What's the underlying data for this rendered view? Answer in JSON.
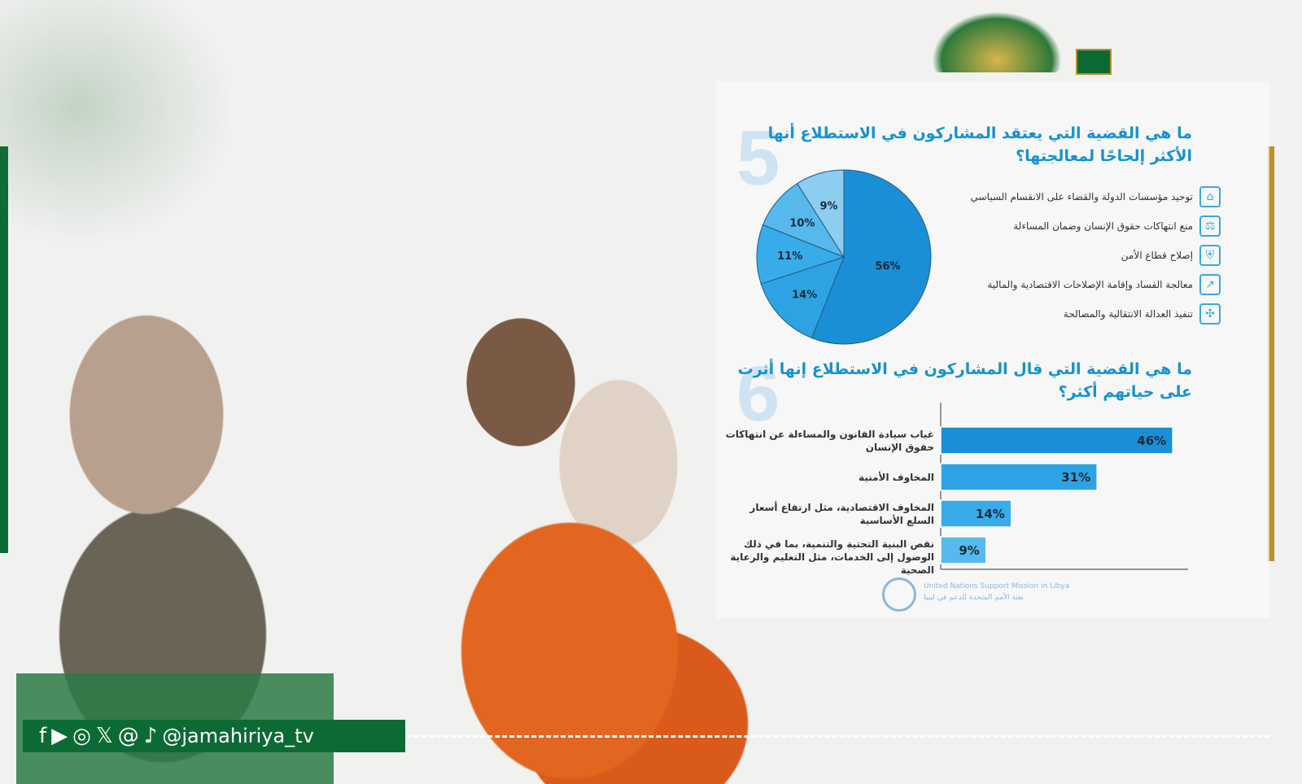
{
  "q5": {
    "number": "5",
    "title": "ما هي القضية التي يعتقد المشاركون في الاستطلاع أنها الأكثر إلحاحًا لمعالجتها؟",
    "legend": [
      {
        "label": "توحيد مؤسسات الدولة والقضاء على الانقسام السياسي",
        "icon": "institution-icon"
      },
      {
        "label": "منع انتهاكات حقوق الإنسان وضمان المساءلة",
        "icon": "scales-icon"
      },
      {
        "label": "إصلاح قطاع الأمن",
        "icon": "shield-icon"
      },
      {
        "label": "معالجة الفساد وإقامة الإصلاحات الاقتصادية والمالية",
        "icon": "growth-coins-icon"
      },
      {
        "label": "تنفيذ العدالة الانتقالية والمصالحة",
        "icon": "handshake-icon"
      }
    ]
  },
  "q6": {
    "number": "6",
    "title": "ما هي القضية التي قال المشاركون في الاستطلاع إنها أثرت على حياتهم أكثر؟"
  },
  "chart_data": [
    {
      "type": "pie",
      "categories": [
        "توحيد مؤسسات الدولة والقضاء على الانقسام السياسي",
        "منع انتهاكات حقوق الإنسان وضمان المساءلة",
        "إصلاح قطاع الأمن",
        "معالجة الفساد وإقامة الإصلاحات الاقتصادية والمالية",
        "تنفيذ العدالة الانتقالية والمصالحة"
      ],
      "values": [
        56,
        14,
        11,
        10,
        9
      ],
      "labels": [
        "56%",
        "14%",
        "11%",
        "10%",
        "9%"
      ],
      "colors": [
        "#1a8fd6",
        "#2ea3e3",
        "#38ace8",
        "#57b9eb",
        "#8ccdf0"
      ]
    },
    {
      "type": "bar",
      "orientation": "horizontal",
      "categories": [
        "غياب سيادة القانون والمساءلة عن انتهاكات حقوق الإنسان",
        "المخاوف الأمنية",
        "المخاوف الاقتصادية، مثل ارتفاع أسعار السلع الأساسية",
        "نقص البنية التحتية والتنمية، بما في ذلك الوصول إلى الخدمات، مثل التعليم والرعاية الصحية"
      ],
      "values": [
        46,
        31,
        14,
        9
      ],
      "labels": [
        "46%",
        "31%",
        "14%",
        "9%"
      ],
      "colors": [
        "#1a8fd6",
        "#2ea3e3",
        "#38ace8",
        "#57b9eb"
      ]
    }
  ],
  "footer": {
    "org_en": "United Nations Support Mission in Libya",
    "org_ar": "بعثة الأمم المتحدة للدعم في ليبيا",
    "social_handle": "@jamahiriya_tv",
    "social_icons": [
      "facebook-icon",
      "youtube-icon",
      "instagram-icon",
      "x-icon",
      "threads-icon",
      "tiktok-icon"
    ]
  },
  "colors": {
    "brand_green": "#0c6b35",
    "accent_blue": "#1592d0",
    "gold": "#b8912a"
  }
}
